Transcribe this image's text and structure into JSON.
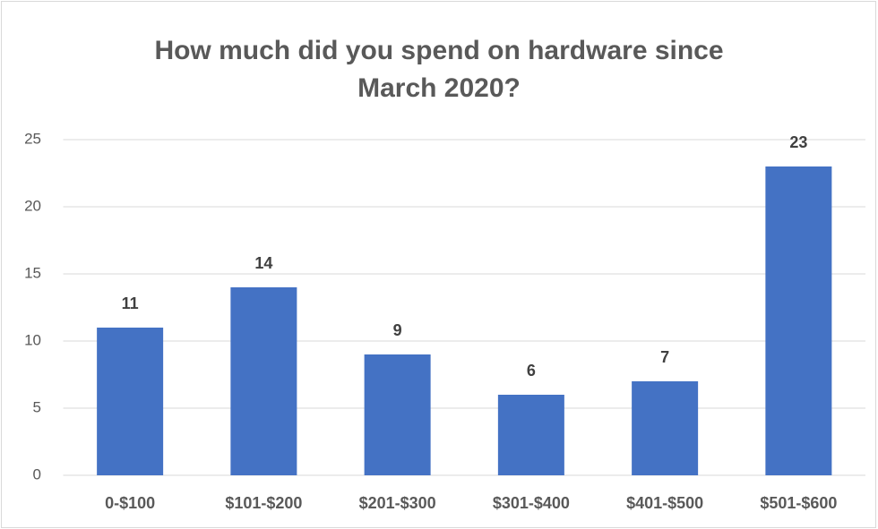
{
  "chart_data": {
    "type": "bar",
    "title": [
      [
        "How much did you spend on ",
        {
          "text": "hardware",
          "bold": true
        },
        " since"
      ],
      [
        "March 2020?"
      ]
    ],
    "categories": [
      "0-$100",
      "$101-$200",
      "$201-$300",
      "$301-$400",
      "$401-$500",
      "$501-$600"
    ],
    "values": [
      11,
      14,
      9,
      6,
      7,
      23
    ],
    "color": "#4472c4",
    "ylim": [
      0,
      25
    ],
    "yticks": [
      0,
      5,
      10,
      15,
      20,
      25
    ],
    "grid": true,
    "data_labels": true
  }
}
